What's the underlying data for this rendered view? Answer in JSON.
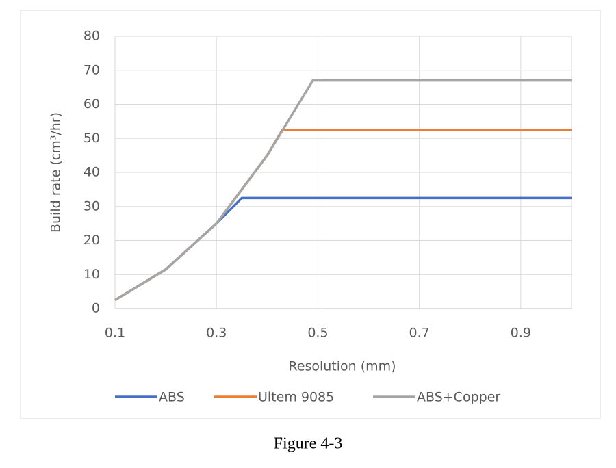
{
  "chart_data": {
    "type": "line",
    "x_label": "Resolution (mm)",
    "y_label": "Build rate (cm³/hr)",
    "caption": "Figure 4-3",
    "xlim": [
      0.1,
      1.0
    ],
    "xticks": [
      0.1,
      0.3,
      0.5,
      0.7,
      0.9
    ],
    "ylim": [
      0,
      80
    ],
    "yticks": [
      0,
      10,
      20,
      30,
      40,
      50,
      60,
      70,
      80
    ],
    "grid": true,
    "legend": "bottom",
    "series": [
      {
        "name": "ABS",
        "color": "#4472c4",
        "x": [
          0.1,
          0.2,
          0.3,
          0.35,
          1.0
        ],
        "values": [
          2.5,
          11.5,
          25,
          32.5,
          32.5
        ]
      },
      {
        "name": "Ultem 9085",
        "color": "#ed7d31",
        "x": [
          0.1,
          0.2,
          0.3,
          0.4,
          0.43,
          1.0
        ],
        "values": [
          2.5,
          11.5,
          25,
          45,
          52.5,
          52.5
        ]
      },
      {
        "name": "ABS+Copper",
        "color": "#a5a5a5",
        "x": [
          0.1,
          0.2,
          0.3,
          0.4,
          0.49,
          1.0
        ],
        "values": [
          2.5,
          11.5,
          25,
          45,
          67,
          67
        ]
      }
    ]
  }
}
